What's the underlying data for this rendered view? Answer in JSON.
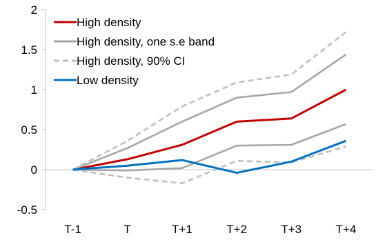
{
  "chart_data": {
    "type": "line",
    "title": "",
    "xlabel": "",
    "ylabel": "",
    "categories": [
      "T-1",
      "T",
      "T+1",
      "T+2",
      "T+3",
      "T+4"
    ],
    "ylim": [
      -0.5,
      2
    ],
    "yticks": [
      -0.5,
      0,
      0.5,
      1,
      1.5,
      2
    ],
    "ytick_labels": [
      "-0.5",
      "0",
      "0.5",
      "1",
      "1.5",
      "2"
    ],
    "grid": false,
    "legend_position": "top-left",
    "series": [
      {
        "name": "High density",
        "color": "#c00000",
        "style": "solid",
        "values": [
          0,
          0.13,
          0.31,
          0.6,
          0.64,
          1.0
        ]
      },
      {
        "name": "High density, one s.e band",
        "color": "#a6a6a6",
        "style": "solid",
        "values": [
          0,
          0.27,
          0.6,
          0.9,
          0.97,
          1.44
        ]
      },
      {
        "name": "",
        "color": "#a6a6a6",
        "style": "solid",
        "values": [
          0,
          -0.01,
          0.02,
          0.3,
          0.31,
          0.57
        ]
      },
      {
        "name": "High density, 90% CI",
        "color": "#bfbfbf",
        "style": "dashed",
        "values": [
          0,
          0.36,
          0.79,
          1.09,
          1.19,
          1.72
        ]
      },
      {
        "name": "",
        "color": "#bfbfbf",
        "style": "dashed",
        "values": [
          0,
          -0.1,
          -0.17,
          0.11,
          0.09,
          0.29
        ]
      },
      {
        "name": "Low density",
        "color": "#0070c0",
        "style": "solid",
        "values": [
          0,
          0.05,
          0.12,
          -0.04,
          0.1,
          0.36
        ]
      }
    ],
    "legend": [
      {
        "label": "High density",
        "color": "#c00000",
        "style": "solid"
      },
      {
        "label": "High density, one s.e band",
        "color": "#a6a6a6",
        "style": "solid"
      },
      {
        "label": "High density, 90% CI",
        "color": "#bfbfbf",
        "style": "dashed"
      },
      {
        "label": "Low density",
        "color": "#0070c0",
        "style": "solid"
      }
    ]
  }
}
